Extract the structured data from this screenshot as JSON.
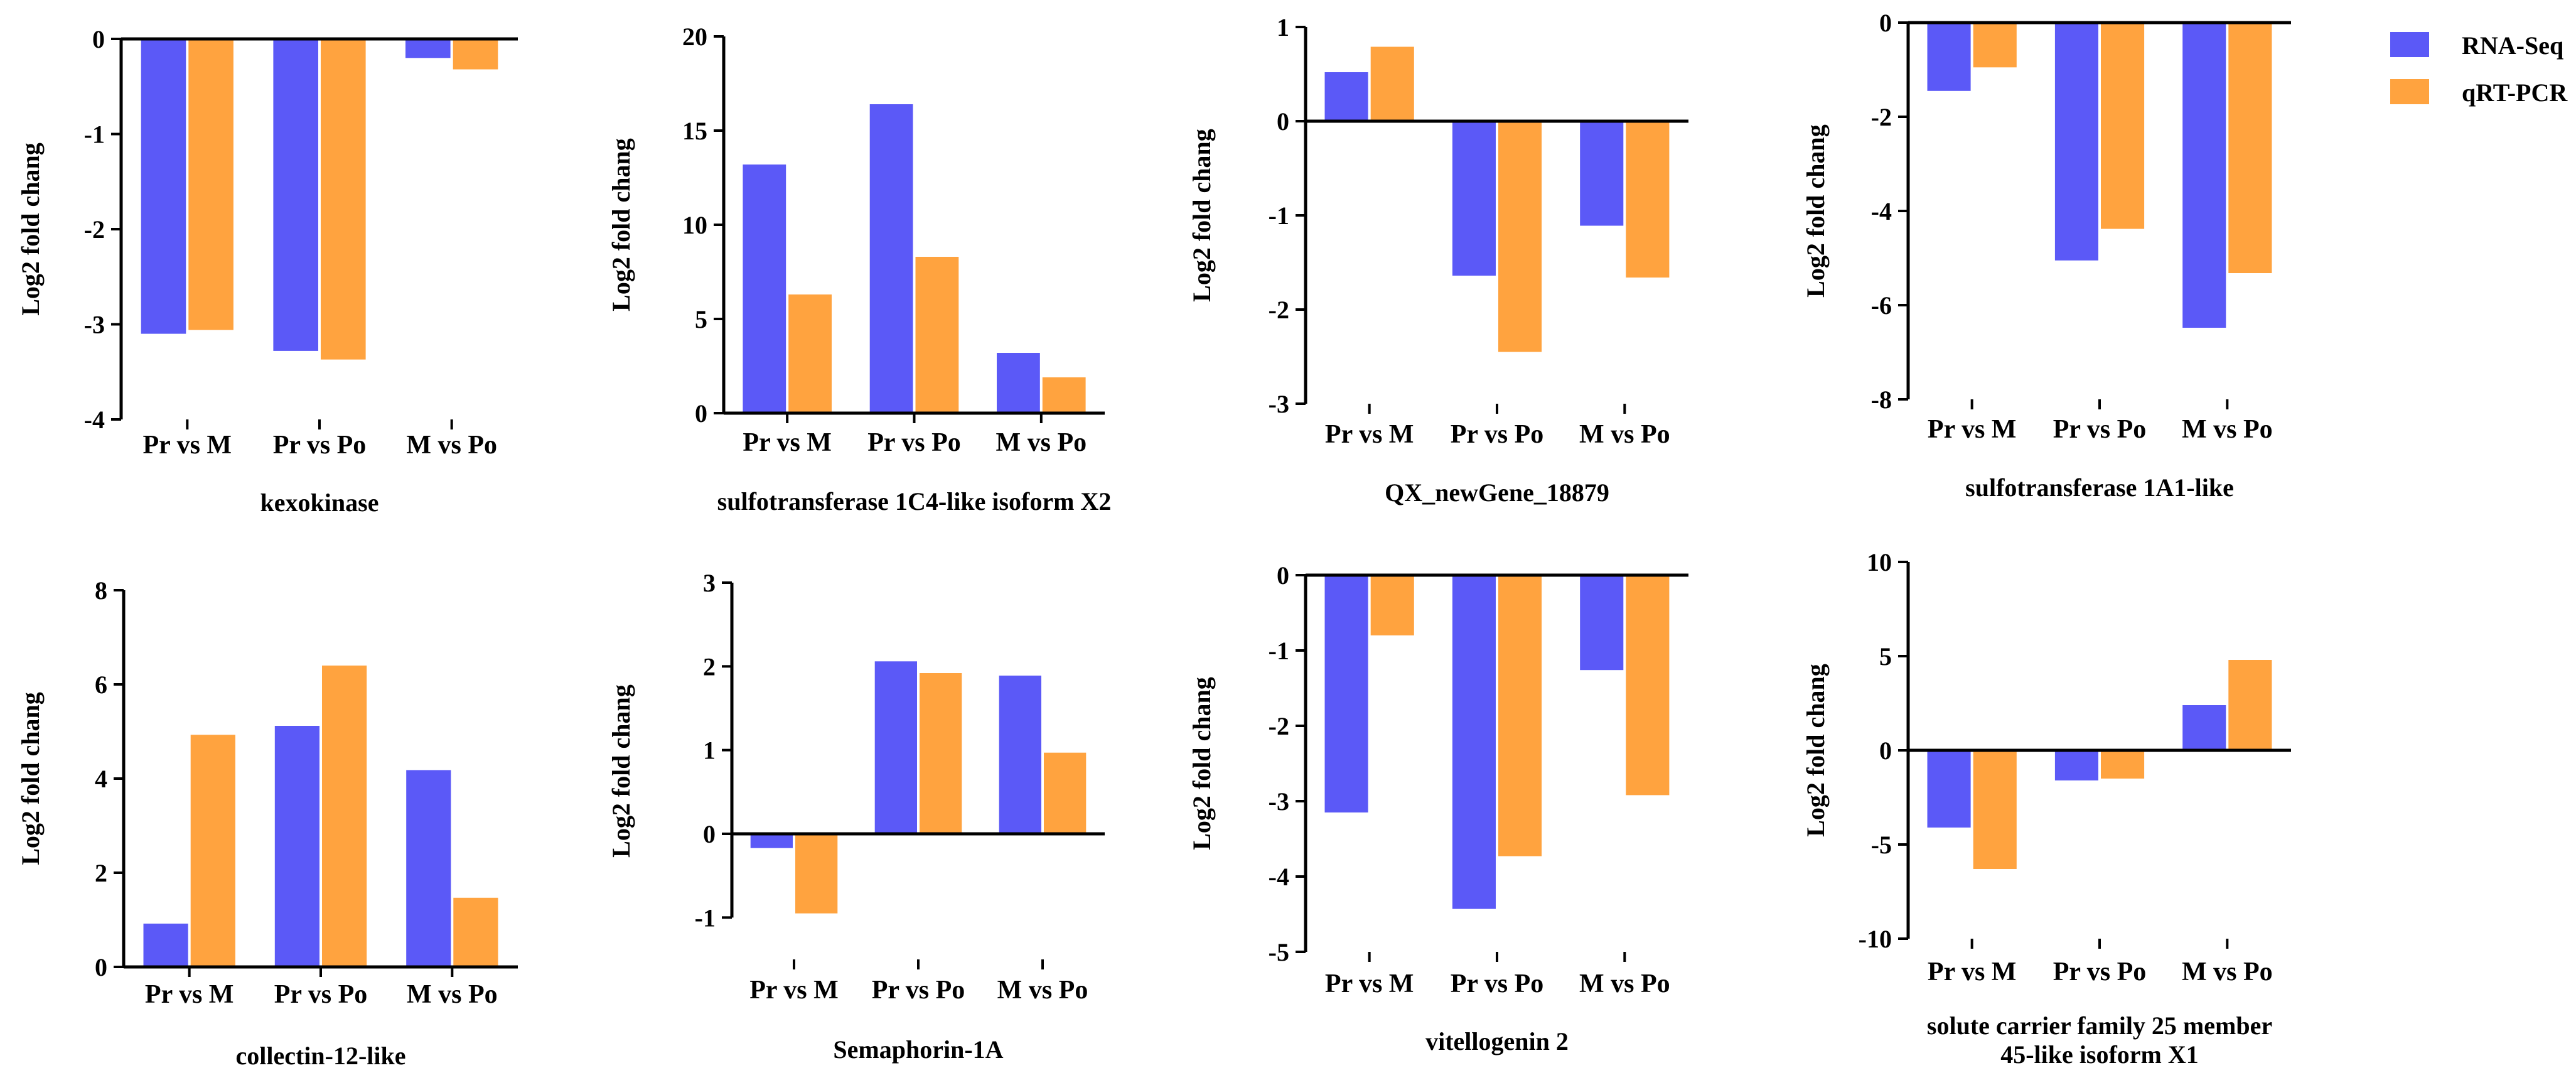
{
  "legend": {
    "items": [
      {
        "label": "RNA-Seq",
        "color": "#5b59f7"
      },
      {
        "label": "qRT-PCR",
        "color": "#ffa33f"
      }
    ]
  },
  "chart_data": [
    {
      "type": "bar",
      "title": "kexokinase",
      "ylabel": "Log2 fold chang",
      "categories": [
        "Pr vs M",
        "Pr vs Po",
        "M vs Po"
      ],
      "series": [
        {
          "name": "RNA-Seq",
          "values": [
            -3.1,
            -3.28,
            -0.2
          ]
        },
        {
          "name": "qRT-PCR",
          "values": [
            -3.06,
            -3.37,
            -0.32
          ]
        }
      ],
      "ylim": [
        -4,
        0
      ],
      "yticks": [
        0,
        -1,
        -2,
        -3,
        -4
      ]
    },
    {
      "type": "bar",
      "title": "sulfotransferase 1C4-like isoform X2",
      "ylabel": "Log2 fold chang",
      "categories": [
        "Pr vs M",
        "Pr vs Po",
        "M vs Po"
      ],
      "series": [
        {
          "name": "RNA-Seq",
          "values": [
            13.2,
            16.4,
            3.2
          ]
        },
        {
          "name": "qRT-PCR",
          "values": [
            6.3,
            8.3,
            1.9
          ]
        }
      ],
      "ylim": [
        0,
        20
      ],
      "yticks": [
        0,
        5,
        10,
        15,
        20
      ]
    },
    {
      "type": "bar",
      "title": "QX_newGene_18879",
      "ylabel": "Log2 fold chang",
      "categories": [
        "Pr vs M",
        "Pr vs Po",
        "M vs Po"
      ],
      "series": [
        {
          "name": "RNA-Seq",
          "values": [
            0.52,
            -1.64,
            -1.11
          ]
        },
        {
          "name": "qRT-PCR",
          "values": [
            0.79,
            -2.45,
            -1.66
          ]
        }
      ],
      "ylim": [
        -3,
        1
      ],
      "yticks": [
        1,
        0,
        -1,
        -2,
        -3
      ]
    },
    {
      "type": "bar",
      "title": "sulfotransferase 1A1-like",
      "ylabel": "Log2 fold chang",
      "categories": [
        "Pr vs M",
        "Pr vs Po",
        "M vs Po"
      ],
      "series": [
        {
          "name": "RNA-Seq",
          "values": [
            -1.45,
            -5.05,
            -6.48
          ]
        },
        {
          "name": "qRT-PCR",
          "values": [
            -0.95,
            -4.38,
            -5.32
          ]
        }
      ],
      "ylim": [
        -8,
        0
      ],
      "yticks": [
        0,
        -2,
        -4,
        -6,
        -8
      ]
    },
    {
      "type": "bar",
      "title": "collectin-12-like",
      "ylabel": "Log2 fold chang",
      "categories": [
        "Pr vs M",
        "Pr vs Po",
        "M vs Po"
      ],
      "series": [
        {
          "name": "RNA-Seq",
          "values": [
            0.92,
            5.12,
            4.18
          ]
        },
        {
          "name": "qRT-PCR",
          "values": [
            4.93,
            6.4,
            1.47
          ]
        }
      ],
      "ylim": [
        0,
        8
      ],
      "yticks": [
        0,
        2,
        4,
        6,
        8
      ]
    },
    {
      "type": "bar",
      "title": "Semaphorin-1A",
      "ylabel": "Log2 fold chang",
      "categories": [
        "Pr vs M",
        "Pr vs Po",
        "M vs Po"
      ],
      "series": [
        {
          "name": "RNA-Seq",
          "values": [
            -0.17,
            2.06,
            1.89
          ]
        },
        {
          "name": "qRT-PCR",
          "values": [
            -0.95,
            1.92,
            0.97
          ]
        }
      ],
      "ylim": [
        -1.5,
        3
      ],
      "yticks": [
        3,
        2,
        1,
        0,
        -1
      ]
    },
    {
      "type": "bar",
      "title": "vitellogenin 2",
      "ylabel": "Log2 fold chang",
      "categories": [
        "Pr vs M",
        "Pr vs Po",
        "M vs Po"
      ],
      "series": [
        {
          "name": "RNA-Seq",
          "values": [
            -3.15,
            -4.43,
            -1.26
          ]
        },
        {
          "name": "qRT-PCR",
          "values": [
            -0.8,
            -3.73,
            -2.92
          ]
        }
      ],
      "ylim": [
        -5,
        0
      ],
      "yticks": [
        0,
        -1,
        -2,
        -3,
        -4,
        -5
      ]
    },
    {
      "type": "bar",
      "title": "solute carrier family 25 member 45-like isoform X1",
      "title_lines": [
        "solute carrier family 25 member",
        "45-like isoform X1"
      ],
      "ylabel": "Log2 fold chang",
      "categories": [
        "Pr vs M",
        "Pr vs Po",
        "M vs Po"
      ],
      "series": [
        {
          "name": "RNA-Seq",
          "values": [
            -4.1,
            -1.6,
            2.4
          ]
        },
        {
          "name": "qRT-PCR",
          "values": [
            -6.3,
            -1.5,
            4.8
          ]
        }
      ],
      "ylim": [
        -10,
        10
      ],
      "yticks": [
        10,
        5,
        0,
        -5,
        -10
      ]
    }
  ]
}
